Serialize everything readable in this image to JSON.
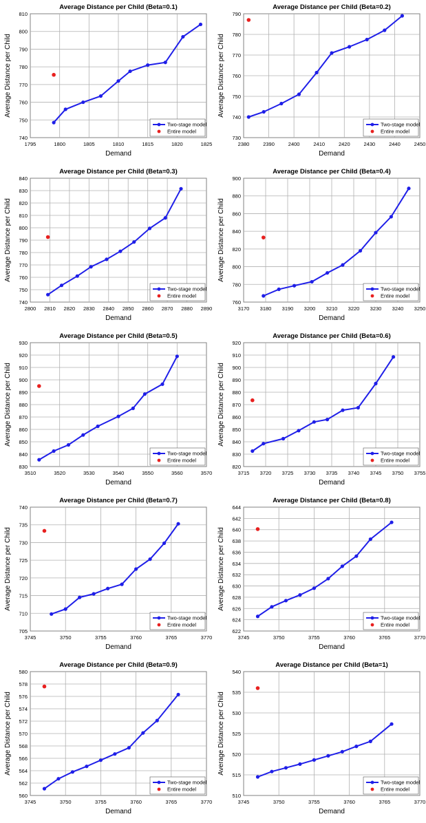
{
  "legend": {
    "two_stage": "Two-stage model",
    "entire": "Entire model"
  },
  "colors": {
    "two_stage": "#1f1fe8",
    "entire": "#e8201f",
    "grid": "#b0b0b0"
  },
  "chart_data": [
    {
      "type": "line",
      "title": "Average Distance per Child (Beta=0.1)",
      "xlabel": "Demand",
      "ylabel": "Average Distance per Child",
      "xlim": [
        1795,
        1825
      ],
      "ylim": [
        740,
        810
      ],
      "xticks": [
        1795,
        1800,
        1805,
        1810,
        1815,
        1820,
        1825
      ],
      "yticks": [
        740,
        750,
        760,
        770,
        780,
        790,
        800,
        810
      ],
      "grid": true,
      "legend_position": "bottom-right",
      "series": [
        {
          "name": "Two-stage model",
          "x": [
            1799,
            1801,
            1804,
            1807,
            1810,
            1812,
            1815,
            1818,
            1821,
            1824
          ],
          "y": [
            748.5,
            756,
            760,
            763.5,
            772,
            777.5,
            781,
            782.5,
            797,
            804
          ]
        },
        {
          "name": "Entire model",
          "x": [
            1799
          ],
          "y": [
            775.5
          ]
        }
      ]
    },
    {
      "type": "line",
      "title": "Average Distance per Child (Beta=0.2)",
      "xlabel": "Demand",
      "ylabel": "Average Distance per Child",
      "xlim": [
        2380,
        2450
      ],
      "ylim": [
        730,
        790
      ],
      "xticks": [
        2380,
        2390,
        2400,
        2410,
        2420,
        2430,
        2440,
        2450
      ],
      "yticks": [
        730,
        740,
        750,
        760,
        770,
        780,
        790
      ],
      "grid": true,
      "legend_position": "bottom-right",
      "series": [
        {
          "name": "Two-stage model",
          "x": [
            2382,
            2388,
            2395,
            2402,
            2409,
            2415,
            2422,
            2429,
            2436,
            2443
          ],
          "y": [
            740,
            742.5,
            746.5,
            751,
            761.5,
            771,
            774,
            777.5,
            782,
            789
          ]
        },
        {
          "name": "Entire model",
          "x": [
            2382
          ],
          "y": [
            787
          ]
        }
      ]
    },
    {
      "type": "line",
      "title": "Average Distance per Child (Beta=0.3)",
      "xlabel": "Demand",
      "ylabel": "Average Distance per Child",
      "xlim": [
        2800,
        2890
      ],
      "ylim": [
        740,
        840
      ],
      "xticks": [
        2800,
        2810,
        2820,
        2830,
        2840,
        2850,
        2860,
        2870,
        2880,
        2890
      ],
      "yticks": [
        740,
        750,
        760,
        770,
        780,
        790,
        800,
        810,
        820,
        830,
        840
      ],
      "grid": true,
      "legend_position": "bottom-right",
      "series": [
        {
          "name": "Two-stage model",
          "x": [
            2809,
            2816,
            2824,
            2831,
            2839,
            2846,
            2853,
            2861,
            2869,
            2877
          ],
          "y": [
            746,
            753.5,
            761,
            768.5,
            774.5,
            781,
            788.5,
            799.5,
            808,
            831.5
          ]
        },
        {
          "name": "Entire model",
          "x": [
            2809
          ],
          "y": [
            792.5
          ]
        }
      ]
    },
    {
      "type": "line",
      "title": "Average Distance per Child (Beta=0.4)",
      "xlabel": "Demand",
      "ylabel": "Average Distance per Child",
      "xlim": [
        3170,
        3250
      ],
      "ylim": [
        760,
        900
      ],
      "xticks": [
        3170,
        3180,
        3190,
        3200,
        3210,
        3220,
        3230,
        3240,
        3250
      ],
      "yticks": [
        760,
        780,
        800,
        820,
        840,
        860,
        880,
        900
      ],
      "grid": true,
      "legend_position": "bottom-right",
      "series": [
        {
          "name": "Two-stage model",
          "x": [
            3179,
            3186,
            3193,
            3201,
            3208,
            3215,
            3223,
            3230,
            3237,
            3245
          ],
          "y": [
            767,
            774.5,
            778.5,
            783,
            793,
            802,
            818,
            838.5,
            856.5,
            888.5
          ]
        },
        {
          "name": "Entire model",
          "x": [
            3179
          ],
          "y": [
            833
          ]
        }
      ]
    },
    {
      "type": "line",
      "title": "Average Distance per Child (Beta=0.5)",
      "xlabel": "Demand",
      "ylabel": "Average Distance per Child",
      "xlim": [
        3510,
        3570
      ],
      "ylim": [
        830,
        930
      ],
      "xticks": [
        3510,
        3520,
        3530,
        3540,
        3550,
        3560,
        3570
      ],
      "yticks": [
        830,
        840,
        850,
        860,
        870,
        880,
        890,
        900,
        910,
        920,
        930
      ],
      "grid": true,
      "legend_position": "bottom-right",
      "series": [
        {
          "name": "Two-stage model",
          "x": [
            3513,
            3518,
            3523,
            3528,
            3533,
            3540,
            3545,
            3549,
            3555,
            3560
          ],
          "y": [
            835.5,
            842.5,
            847.5,
            855.5,
            862.5,
            870.5,
            877,
            888.5,
            896.5,
            919
          ]
        },
        {
          "name": "Entire model",
          "x": [
            3513
          ],
          "y": [
            895
          ]
        }
      ]
    },
    {
      "type": "line",
      "title": "Average Distance per Child (Beta=0.6)",
      "xlabel": "Demand",
      "ylabel": "Average Distance per Child",
      "xlim": [
        3715,
        3755
      ],
      "ylim": [
        820,
        920
      ],
      "xticks": [
        3715,
        3720,
        3725,
        3730,
        3735,
        3740,
        3745,
        3750,
        3755
      ],
      "yticks": [
        820,
        830,
        840,
        850,
        860,
        870,
        880,
        890,
        900,
        910,
        920
      ],
      "grid": true,
      "legend_position": "bottom-right",
      "series": [
        {
          "name": "Two-stage model",
          "x": [
            3717,
            3719.5,
            3724,
            3727.5,
            3731,
            3734,
            3737.5,
            3741,
            3745,
            3749
          ],
          "y": [
            832.5,
            838.5,
            842.5,
            849,
            856,
            858,
            865.5,
            867.5,
            887,
            908.5
          ]
        },
        {
          "name": "Entire model",
          "x": [
            3717
          ],
          "y": [
            873.5
          ]
        }
      ]
    },
    {
      "type": "line",
      "title": "Average Distance per Child (Beta=0.7)",
      "xlabel": "Demand",
      "ylabel": "Average Distance per Child",
      "xlim": [
        3745,
        3770
      ],
      "ylim": [
        705,
        740
      ],
      "xticks": [
        3745,
        3750,
        3755,
        3760,
        3765,
        3770
      ],
      "yticks": [
        705,
        710,
        715,
        720,
        725,
        730,
        735,
        740
      ],
      "grid": true,
      "legend_position": "bottom-right",
      "series": [
        {
          "name": "Two-stage model",
          "x": [
            3748,
            3750,
            3752,
            3754,
            3756,
            3758,
            3760,
            3762,
            3764,
            3766
          ],
          "y": [
            709.8,
            711.2,
            714.5,
            715.5,
            717,
            718.2,
            722.5,
            725.3,
            729.8,
            735.3
          ]
        },
        {
          "name": "Entire model",
          "x": [
            3747
          ],
          "y": [
            733.3
          ]
        }
      ]
    },
    {
      "type": "line",
      "title": "Average Distance per Child (Beta=0.8)",
      "xlabel": "Demand",
      "ylabel": "Average Distance per Child",
      "xlim": [
        3745,
        3770
      ],
      "ylim": [
        622,
        644
      ],
      "xticks": [
        3745,
        3750,
        3755,
        3760,
        3765,
        3770
      ],
      "yticks": [
        622,
        624,
        626,
        628,
        630,
        632,
        634,
        636,
        638,
        640,
        642,
        644
      ],
      "grid": true,
      "legend_position": "bottom-right",
      "series": [
        {
          "name": "Two-stage model",
          "x": [
            3747,
            3749,
            3751,
            3753,
            3755,
            3757,
            3759,
            3761,
            3763,
            3766
          ],
          "y": [
            624.6,
            626.3,
            627.4,
            628.4,
            629.6,
            631.3,
            633.5,
            635.3,
            638.3,
            641.3
          ]
        },
        {
          "name": "Entire model",
          "x": [
            3747
          ],
          "y": [
            640.1
          ]
        }
      ]
    },
    {
      "type": "line",
      "title": "Average Distance per Child (Beta=0.9)",
      "xlabel": "Demand",
      "ylabel": "Average Distance per Child",
      "xlim": [
        3745,
        3770
      ],
      "ylim": [
        560,
        580
      ],
      "xticks": [
        3745,
        3750,
        3755,
        3760,
        3765,
        3770
      ],
      "yticks": [
        560,
        562,
        564,
        566,
        568,
        570,
        572,
        574,
        576,
        578,
        580
      ],
      "grid": true,
      "legend_position": "bottom-right",
      "series": [
        {
          "name": "Two-stage model",
          "x": [
            3747,
            3749,
            3751,
            3753,
            3755,
            3757,
            3759,
            3761,
            3763,
            3766
          ],
          "y": [
            561.1,
            562.7,
            563.8,
            564.7,
            565.7,
            566.7,
            567.7,
            570.1,
            572.1,
            576.3
          ]
        },
        {
          "name": "Entire model",
          "x": [
            3747
          ],
          "y": [
            577.6
          ]
        }
      ]
    },
    {
      "type": "line",
      "title": "Average Distance per Child (Beta=1)",
      "xlabel": "Demand",
      "ylabel": "Average Distance per Child",
      "xlim": [
        3745,
        3770
      ],
      "ylim": [
        510,
        540
      ],
      "xticks": [
        3745,
        3750,
        3755,
        3760,
        3765,
        3770
      ],
      "yticks": [
        510,
        515,
        520,
        525,
        530,
        535,
        540
      ],
      "grid": true,
      "legend_position": "bottom-right",
      "series": [
        {
          "name": "Two-stage model",
          "x": [
            3747,
            3749,
            3751,
            3753,
            3755,
            3757,
            3759,
            3761,
            3763,
            3766
          ],
          "y": [
            514.5,
            515.8,
            516.7,
            517.6,
            518.6,
            519.6,
            520.6,
            521.9,
            523.1,
            527.3
          ]
        },
        {
          "name": "Entire model",
          "x": [
            3747
          ],
          "y": [
            536
          ]
        }
      ]
    }
  ]
}
